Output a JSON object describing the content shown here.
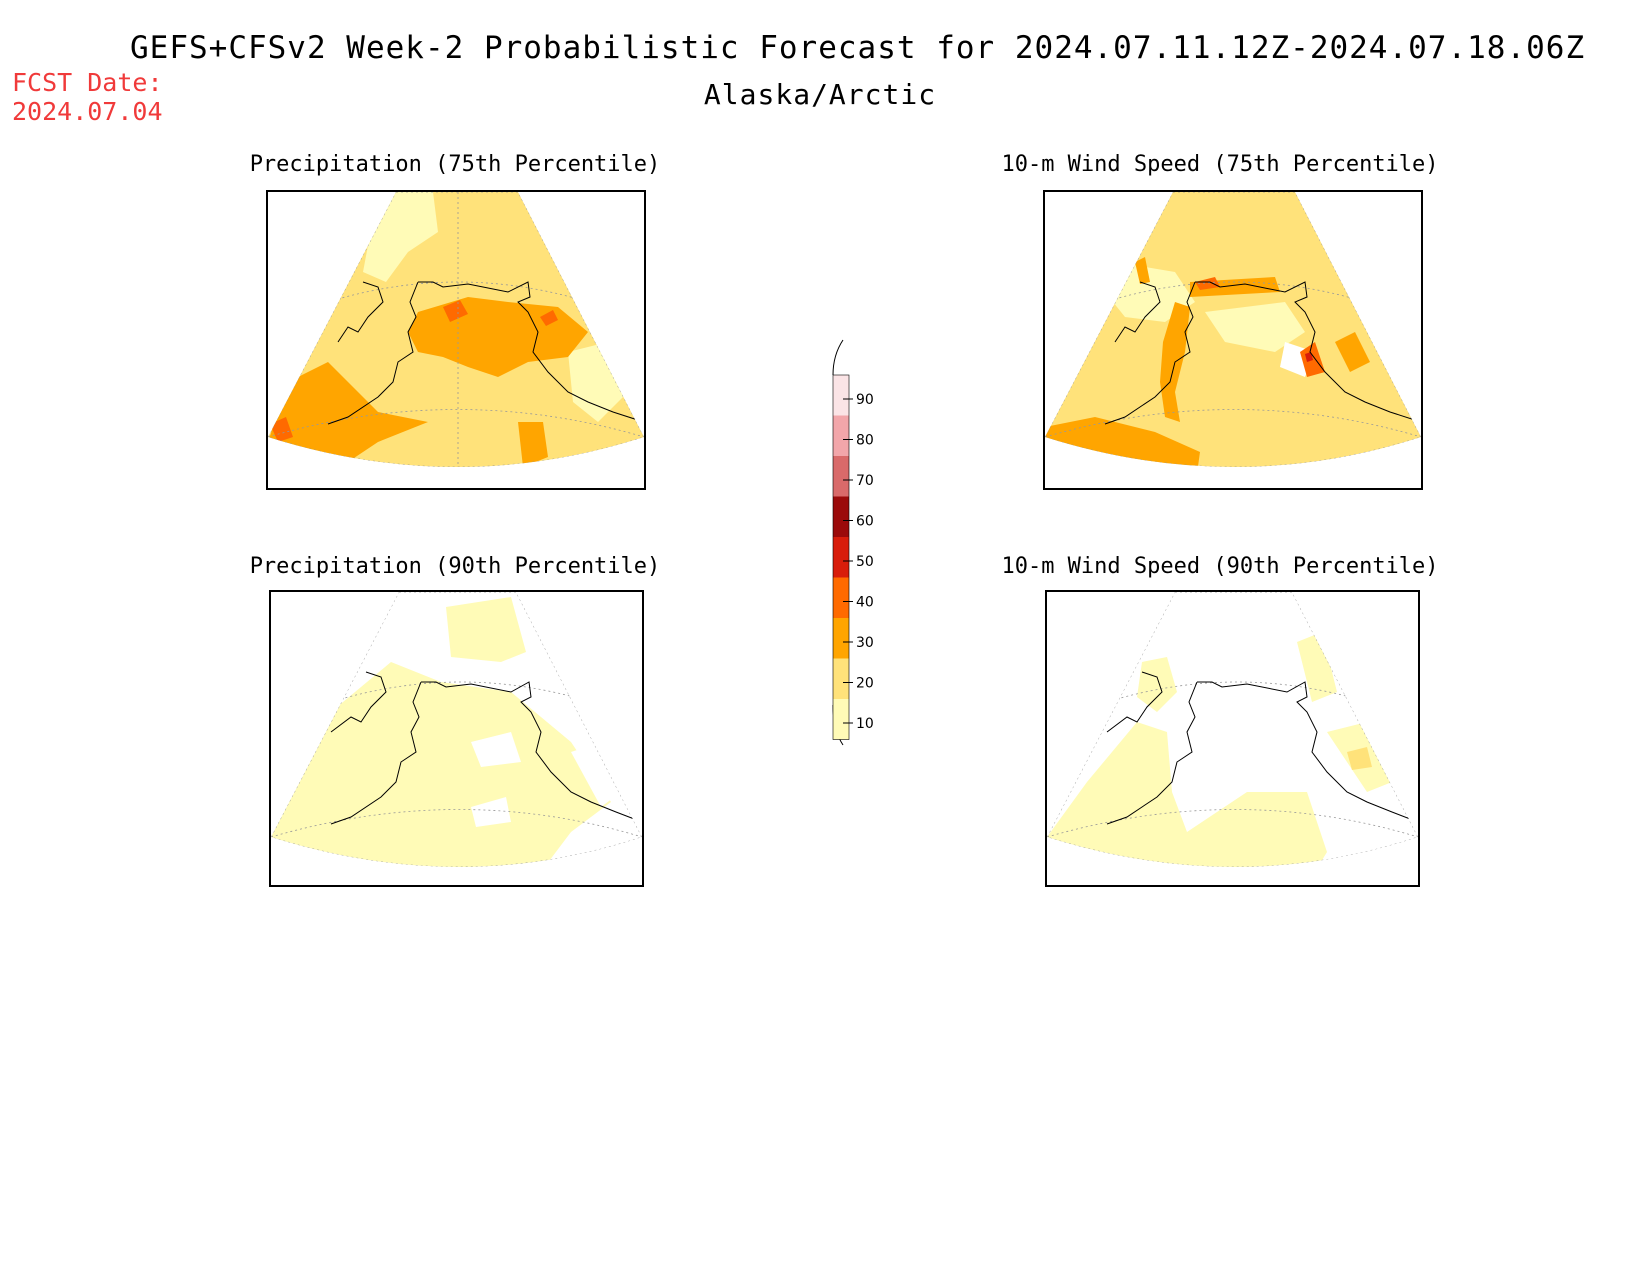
{
  "header": {
    "title": "GEFS+CFSv2 Week-2 Probabilistic Forecast for 2024.07.11.12Z-2024.07.18.06Z",
    "subtitle": "Alaska/Arctic",
    "fcst_label": "FCST Date:",
    "fcst_date": "2024.07.04"
  },
  "panels": [
    {
      "id": "precip75",
      "title": "Precipitation (75th Percentile)"
    },
    {
      "id": "wind75",
      "title": "10-m Wind Speed (75th Percentile)"
    },
    {
      "id": "precip90",
      "title": "Precipitation (90th Percentile)"
    },
    {
      "id": "wind90",
      "title": "10-m Wind Speed (90th Percentile)"
    }
  ],
  "colorbar": {
    "levels": [
      {
        "value": "90",
        "color": "#fbe4e6"
      },
      {
        "value": "80",
        "color": "#f2a6aa"
      },
      {
        "value": "70",
        "color": "#d96a6a"
      },
      {
        "value": "60",
        "color": "#9b0a0a"
      },
      {
        "value": "50",
        "color": "#d81d0b"
      },
      {
        "value": "40",
        "color": "#ff6a00"
      },
      {
        "value": "30",
        "color": "#ffa500"
      },
      {
        "value": "20",
        "color": "#ffe27a"
      },
      {
        "value": "10",
        "color": "#fffbb7"
      }
    ]
  },
  "colors": {
    "c10": "#fffbb7",
    "c20": "#ffe27a",
    "c30": "#ffa500",
    "c40": "#ff6a00",
    "c50": "#d81d0b"
  }
}
